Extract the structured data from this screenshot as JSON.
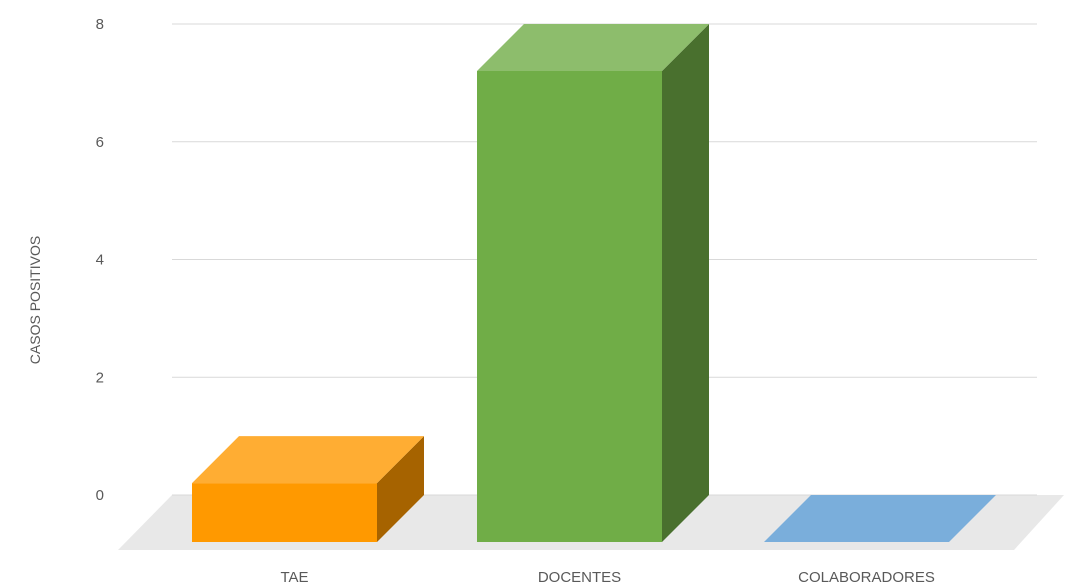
{
  "chart_data": {
    "type": "bar",
    "categories": [
      "TAE",
      "DOCENTES",
      "COLABORADORES"
    ],
    "values": [
      1,
      8,
      0
    ],
    "xlabel": "",
    "ylabel": "CASOS POSITIVOS",
    "ylim": [
      0,
      8
    ],
    "yticks": [
      0,
      2,
      4,
      6,
      8
    ],
    "grid": true,
    "legend": "none",
    "style": "3d-column",
    "colors": {
      "TAE": "#ff9900",
      "DOCENTES": "#70ad47",
      "COLABORADORES": "#7aaedb",
      "floor": "#e8e8e8",
      "grid": "#d9d9d9",
      "text": "#595959"
    }
  }
}
